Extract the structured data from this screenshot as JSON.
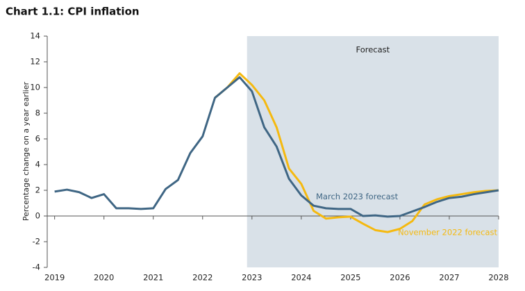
{
  "chart_data": {
    "type": "line",
    "title": "Chart 1.1: CPI inflation",
    "y_label": "Percentage change on a year earlier",
    "xlim": [
      2018.85,
      2028
    ],
    "xticks": [
      2019,
      2020,
      2021,
      2022,
      2023,
      2024,
      2025,
      2026,
      2027,
      2028
    ],
    "ylim": [
      -4,
      14
    ],
    "yticks": [
      -4,
      -2,
      0,
      2,
      4,
      6,
      8,
      10,
      12,
      14
    ],
    "forecast_region": {
      "label": "Forecast",
      "start": 2022.9,
      "color": "#d9e1e8"
    },
    "series": [
      {
        "name": "November 2022 forecast",
        "color": "#f5b90f",
        "x": [
          2022.25,
          2022.5,
          2022.75,
          2023,
          2023.25,
          2023.5,
          2023.75,
          2024,
          2024.25,
          2024.5,
          2024.75,
          2025,
          2025.25,
          2025.5,
          2025.75,
          2026,
          2026.25,
          2026.5,
          2026.75,
          2027,
          2027.25,
          2027.5,
          2027.75,
          2028
        ],
        "values": [
          9.2,
          10.0,
          11.1,
          10.2,
          9.0,
          6.9,
          3.7,
          2.5,
          0.4,
          -0.2,
          -0.1,
          -0.05,
          -0.6,
          -1.1,
          -1.25,
          -1.0,
          -0.4,
          0.9,
          1.3,
          1.55,
          1.7,
          1.85,
          1.95,
          2.0
        ]
      },
      {
        "name": "March 2023 forecast",
        "color": "#3f6684",
        "x": [
          2019,
          2019.25,
          2019.5,
          2019.75,
          2020,
          2020.25,
          2020.5,
          2020.75,
          2021,
          2021.25,
          2021.5,
          2021.75,
          2022,
          2022.25,
          2022.5,
          2022.75,
          2023,
          2023.25,
          2023.5,
          2023.75,
          2024,
          2024.25,
          2024.5,
          2024.75,
          2025,
          2025.25,
          2025.5,
          2025.75,
          2026,
          2026.25,
          2026.5,
          2026.75,
          2027,
          2027.25,
          2027.5,
          2027.75,
          2028
        ],
        "values": [
          1.9,
          2.05,
          1.85,
          1.4,
          1.7,
          0.6,
          0.6,
          0.55,
          0.6,
          2.1,
          2.8,
          4.9,
          6.2,
          9.2,
          10.0,
          10.8,
          9.7,
          6.9,
          5.4,
          2.9,
          1.6,
          0.8,
          0.6,
          0.55,
          0.55,
          0.0,
          0.05,
          -0.05,
          0.0,
          0.35,
          0.7,
          1.1,
          1.4,
          1.5,
          1.7,
          1.85,
          2.0
        ]
      }
    ]
  }
}
